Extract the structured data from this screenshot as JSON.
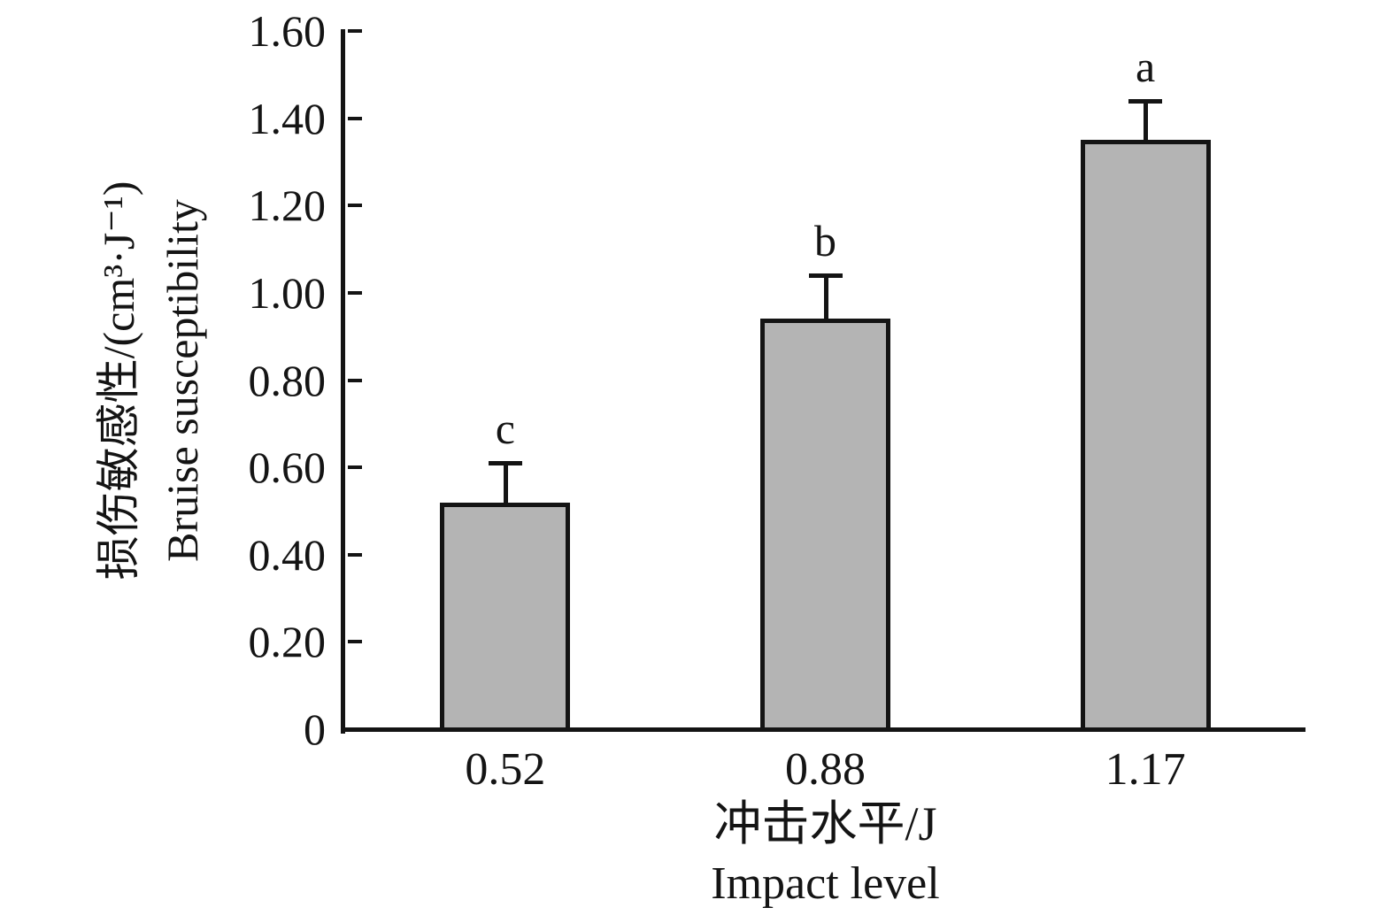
{
  "chart_data": {
    "type": "bar",
    "categories": [
      "0.52",
      "0.88",
      "1.17"
    ],
    "values": [
      0.52,
      0.94,
      1.35
    ],
    "errors_plus": [
      0.09,
      0.1,
      0.09
    ],
    "sig_labels": [
      "c",
      "b",
      "a"
    ],
    "yticks": [
      {
        "label": "0",
        "value": 0.0
      },
      {
        "label": "0.20",
        "value": 0.2
      },
      {
        "label": "0.40",
        "value": 0.4
      },
      {
        "label": "0.60",
        "value": 0.6
      },
      {
        "label": "0.80",
        "value": 0.8
      },
      {
        "label": "1.00",
        "value": 1.0
      },
      {
        "label": "1.20",
        "value": 1.2
      },
      {
        "label": "1.40",
        "value": 1.4
      },
      {
        "label": "1.60",
        "value": 1.6
      }
    ],
    "ylim": [
      0,
      1.6
    ],
    "xlabel": {
      "zh": "冲击水平/J",
      "en": "Impact level"
    },
    "ylabel": {
      "zh": "损伤敏感性/(cm³·J⁻¹)",
      "en": "Bruise susceptibility"
    },
    "grid": false,
    "legend_position": "none",
    "colors": {
      "bar_fill": "#b4b4b4",
      "bar_stroke": "#141414",
      "axis": "#141414",
      "text": "#141414",
      "background": "#ffffff"
    }
  }
}
